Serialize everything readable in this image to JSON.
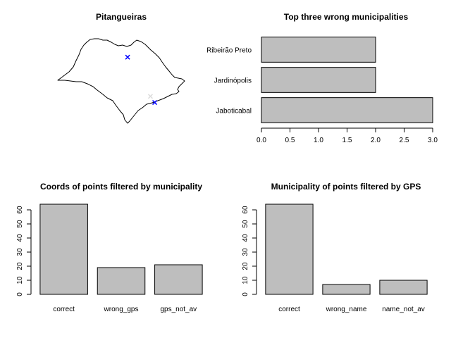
{
  "chart_data": [
    {
      "type": "map",
      "title": "Pitangueiras",
      "region_outline": "São Paulo state",
      "markers": [
        {
          "label": "",
          "symbol": "x",
          "color": "#0000ff",
          "lon": -48.2,
          "lat": -21.0
        },
        {
          "label": "",
          "symbol": "x",
          "color": "#0000ff",
          "lon": -46.3,
          "lat": -23.95
        },
        {
          "label": "",
          "symbol": "x",
          "color": "#dddddd",
          "lon": -46.6,
          "lat": -23.55
        }
      ]
    },
    {
      "type": "bar",
      "orientation": "horizontal",
      "title": "Top three wrong municipalities",
      "categories": [
        "Jaboticabal",
        "Jardinópolis",
        "Ribeirão Preto"
      ],
      "values": [
        3,
        2,
        2
      ],
      "xlim": [
        0,
        3
      ],
      "xticks": [
        "0.0",
        "0.5",
        "1.0",
        "1.5",
        "2.0",
        "2.5",
        "3.0"
      ],
      "bar_color": "#bebebe",
      "grid": false
    },
    {
      "type": "bar",
      "title": "Coords of points filtered by municipality",
      "categories": [
        "correct",
        "wrong_gps",
        "gps_not_av"
      ],
      "values": [
        64,
        19,
        21
      ],
      "ylim": [
        0,
        60
      ],
      "yticks": [
        "0",
        "10",
        "20",
        "30",
        "40",
        "50",
        "60"
      ],
      "bar_color": "#bebebe",
      "grid": false
    },
    {
      "type": "bar",
      "title": "Municipality of points filtered by GPS",
      "categories": [
        "correct",
        "wrong_name",
        "name_not_av"
      ],
      "values": [
        64,
        7,
        10
      ],
      "ylim": [
        0,
        60
      ],
      "yticks": [
        "0",
        "10",
        "20",
        "30",
        "40",
        "50",
        "60"
      ],
      "bar_color": "#bebebe",
      "grid": false
    }
  ]
}
